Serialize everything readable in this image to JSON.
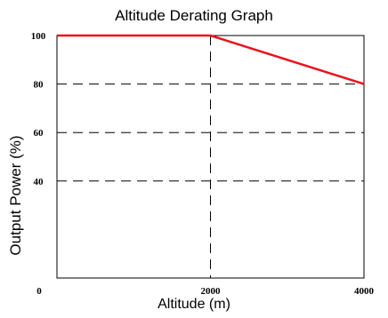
{
  "chart_data": {
    "type": "line",
    "title": "Altitude Derating Graph",
    "xlabel": "Altitude (m)",
    "ylabel": "Output Power (%)",
    "xlim": [
      0,
      4000
    ],
    "ylim": [
      0,
      100
    ],
    "x_ticks": [
      0,
      2000,
      4000
    ],
    "y_ticks": [
      40,
      60,
      80,
      100
    ],
    "grid": "dashed",
    "series": [
      {
        "x": [
          0,
          2000,
          4000
        ],
        "y": [
          100,
          100,
          80
        ],
        "color": "#e8141c"
      }
    ]
  }
}
